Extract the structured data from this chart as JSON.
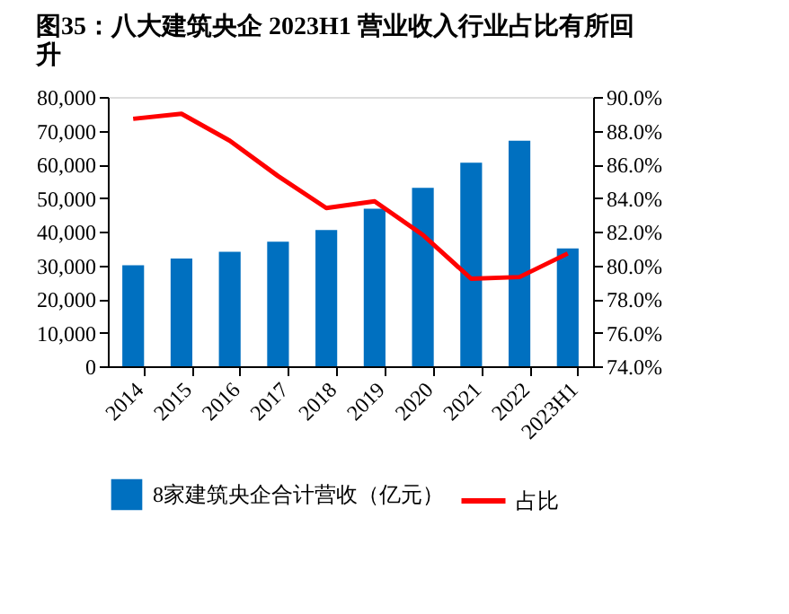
{
  "chart_data": {
    "type": "bar",
    "title": [
      "图35：八大建筑央企 2023H1 营业收入行业占比有所回",
      "升"
    ],
    "categories": [
      "2014",
      "2015",
      "2016",
      "2017",
      "2018",
      "2019",
      "2020",
      "2021",
      "2022",
      "2023H1"
    ],
    "series": [
      {
        "name": "8家建筑央企合计营收（亿元）",
        "color": "#0070c0",
        "values": [
          30000,
          32000,
          34000,
          37000,
          40500,
          46800,
          53000,
          60500,
          67000,
          35000
        ]
      },
      {
        "name": "占比",
        "type": "line",
        "axis": "y2",
        "color": "#ff0000",
        "values": [
          88.7,
          89.0,
          87.4,
          85.3,
          83.4,
          83.8,
          81.8,
          79.2,
          79.3,
          80.7
        ]
      }
    ],
    "ylim": [
      0,
      80000
    ],
    "yticks": [
      0,
      {
        "value": 10000,
        "label": "10,000"
      },
      {
        "value": 20000,
        "label": "20,000"
      },
      {
        "value": 30000,
        "label": "30,000"
      },
      {
        "value": 40000,
        "label": "40,000"
      },
      {
        "value": 50000,
        "label": "50,000"
      },
      {
        "value": 60000,
        "label": "60,000"
      },
      {
        "value": 70000,
        "label": "70,000"
      },
      {
        "value": 80000,
        "label": "80,000"
      }
    ],
    "y2lim": [
      74,
      90
    ],
    "y2ticks": [
      {
        "value": 74,
        "label": "74.0%"
      },
      {
        "value": 76,
        "label": "76.0%"
      },
      {
        "value": 78,
        "label": "78.0%"
      },
      {
        "value": 80,
        "label": "80.0%"
      },
      {
        "value": 82,
        "label": "82.0%"
      },
      {
        "value": 84,
        "label": "84.0%"
      },
      {
        "value": 86,
        "label": "86.0%"
      },
      {
        "value": 88,
        "label": "88.0%"
      },
      {
        "value": 90,
        "label": "90.0%"
      }
    ],
    "grid": false,
    "legend": "bottom"
  }
}
